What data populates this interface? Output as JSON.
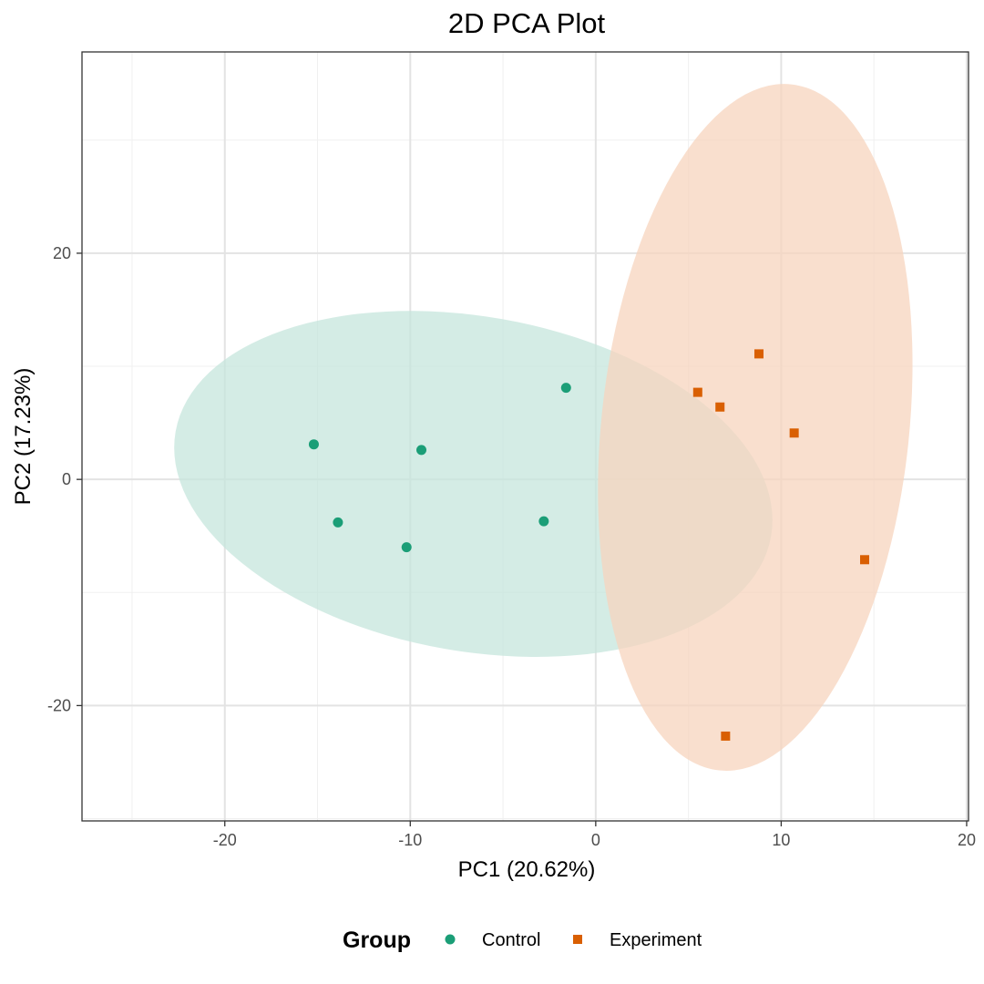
{
  "chart_data": {
    "type": "scatter",
    "title": "2D PCA Plot",
    "xlabel": "PC1 (20.62%)",
    "ylabel": "PC2 (17.23%)",
    "xlim": [
      -27.7,
      20.1
    ],
    "ylim": [
      -30.2,
      37.8
    ],
    "x_ticks": [
      -20,
      -10,
      0,
      10,
      20
    ],
    "x_tick_labels": [
      "-20",
      "-10",
      "0",
      "10",
      "20"
    ],
    "y_ticks": [
      -20,
      0,
      20
    ],
    "y_tick_labels": [
      "-20",
      "0",
      "20"
    ],
    "grid": true,
    "legend": {
      "title": "Group",
      "position": "bottom",
      "entries": [
        "Control",
        "Experiment"
      ]
    },
    "series": [
      {
        "name": "Control",
        "color": "#1b9e77",
        "marker": "circle",
        "points": [
          {
            "x": -15.2,
            "y": 3.1
          },
          {
            "x": -13.9,
            "y": -3.8
          },
          {
            "x": -10.2,
            "y": -6.0
          },
          {
            "x": -9.4,
            "y": 2.6
          },
          {
            "x": -2.8,
            "y": -3.7
          },
          {
            "x": -1.6,
            "y": 8.1
          }
        ],
        "ellipse": {
          "cx": -6.6,
          "cy": -0.4,
          "rx": 16.3,
          "ry": 14.8,
          "angle_deg": 10,
          "fill": "#c5e6dc"
        }
      },
      {
        "name": "Experiment",
        "color": "#d95f02",
        "marker": "square",
        "points": [
          {
            "x": 5.5,
            "y": 7.7
          },
          {
            "x": 6.7,
            "y": 6.4
          },
          {
            "x": 8.8,
            "y": 11.1
          },
          {
            "x": 10.7,
            "y": 4.1
          },
          {
            "x": 14.5,
            "y": -7.1
          },
          {
            "x": 7.0,
            "y": -22.7
          }
        ],
        "ellipse": {
          "cx": 8.6,
          "cy": 4.6,
          "rx": 8.3,
          "ry": 30.5,
          "angle_deg": 6,
          "fill": "#f7d4bd"
        }
      }
    ]
  }
}
